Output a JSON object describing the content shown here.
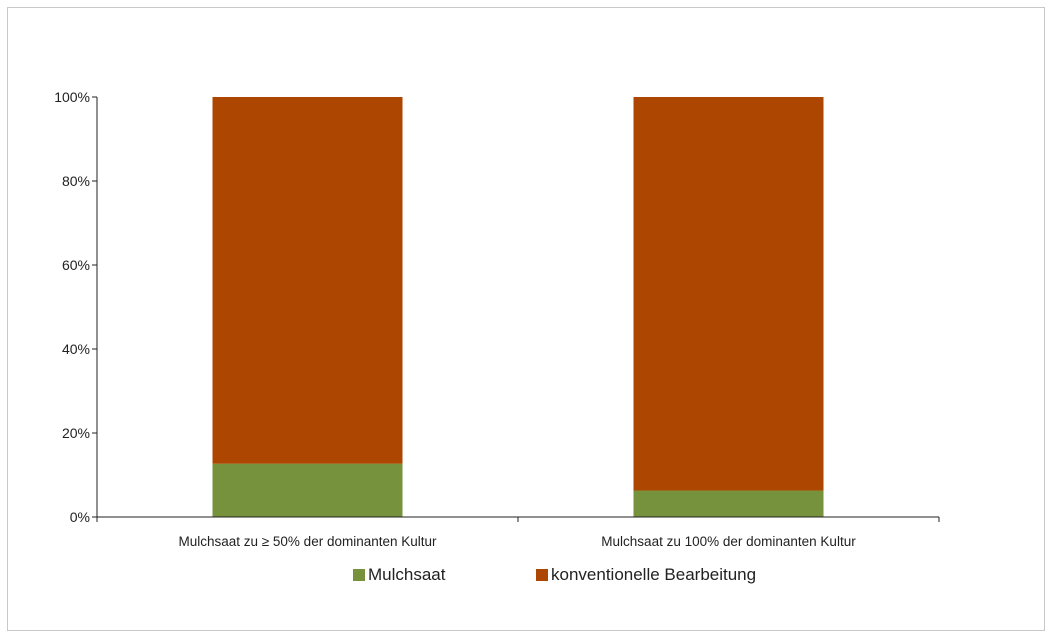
{
  "chart_data": {
    "type": "bar",
    "stacked": true,
    "percent_stacked": true,
    "title": "",
    "xlabel": "",
    "ylabel": "",
    "categories": [
      "Mulchsaat zu ≥ 50% der dominanten Kultur",
      "Mulchsaat zu 100% der dominanten Kultur"
    ],
    "series": [
      {
        "name": "Mulchsaat",
        "values": [
          12.7,
          6.3
        ],
        "color": "#76923c"
      },
      {
        "name": "konventionelle Bearbeitung",
        "values": [
          87.3,
          93.7
        ],
        "color": "#ad4600"
      }
    ],
    "ylim": [
      0,
      100
    ],
    "yticks": [
      "0%",
      "20%",
      "40%",
      "60%",
      "80%",
      "100%"
    ],
    "grid": false,
    "legend_position": "bottom"
  }
}
